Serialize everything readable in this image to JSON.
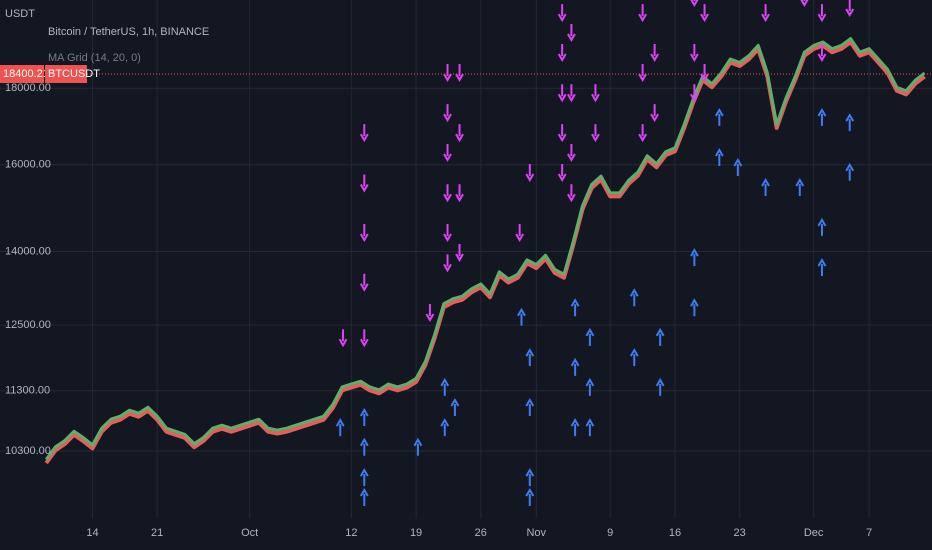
{
  "chart_data": {
    "type": "line",
    "title": "Bitcoin / TetherUS, 1h, BINANCE",
    "indicator": "MA Grid (14, 20, 0)",
    "y_unit": "USDT",
    "symbol": "BTCUSDT",
    "last_price": 18400.21,
    "last_price_color": "#ef5350",
    "log_scale": true,
    "grid": true,
    "xlim": [
      -6,
      94.8
    ],
    "xticks": [
      {
        "value": 4,
        "label": "14"
      },
      {
        "value": 11,
        "label": "21"
      },
      {
        "value": 21,
        "label": "Oct"
      },
      {
        "value": 32,
        "label": "12"
      },
      {
        "value": 39,
        "label": "19"
      },
      {
        "value": 46,
        "label": "26"
      },
      {
        "value": 52,
        "label": "Nov"
      },
      {
        "value": 60,
        "label": "9"
      },
      {
        "value": 67,
        "label": "16"
      },
      {
        "value": 74,
        "label": "23"
      },
      {
        "value": 82,
        "label": "Dec"
      },
      {
        "value": 88,
        "label": "7"
      }
    ],
    "ylim": [
      9290,
      20620
    ],
    "yticks": [
      {
        "value": 10300,
        "label": "10300.00"
      },
      {
        "value": 11300,
        "label": "11300.00"
      },
      {
        "value": 12500,
        "label": "12500.00"
      },
      {
        "value": 14000,
        "label": "14000.00"
      },
      {
        "value": 16000,
        "label": "16000.00"
      },
      {
        "value": 18000,
        "label": "18000.00"
      }
    ],
    "series": [
      {
        "color": "#5fae6a",
        "band_color": "#e0605a",
        "x": [
          -1,
          0,
          1,
          2,
          3,
          4,
          5,
          6,
          7,
          8,
          9,
          10,
          11,
          12,
          13,
          14,
          15,
          16,
          17,
          18,
          19,
          20,
          21,
          22,
          23,
          24,
          25,
          26,
          27,
          28,
          29,
          30,
          31,
          32,
          33,
          34,
          35,
          36,
          37,
          38,
          39,
          40,
          41,
          42,
          43,
          44,
          45,
          46,
          47,
          48,
          49,
          50,
          51,
          52,
          53,
          54,
          55,
          56,
          57,
          58,
          59,
          60,
          61,
          62,
          63,
          64,
          65,
          66,
          67,
          68,
          69,
          70,
          71,
          72,
          73,
          74,
          75,
          76,
          77,
          78,
          79,
          80,
          81,
          82,
          83,
          84,
          85,
          86,
          87,
          88,
          89,
          90,
          91,
          92,
          93,
          94
        ],
        "values": [
          10150,
          10350,
          10450,
          10600,
          10500,
          10380,
          10650,
          10800,
          10850,
          10950,
          10900,
          11000,
          10850,
          10650,
          10600,
          10550,
          10400,
          10500,
          10650,
          10700,
          10650,
          10700,
          10750,
          10800,
          10650,
          10620,
          10650,
          10700,
          10750,
          10800,
          10850,
          11050,
          11350,
          11400,
          11450,
          11350,
          11300,
          11400,
          11350,
          11400,
          11500,
          11800,
          12300,
          12900,
          13000,
          13050,
          13200,
          13300,
          13100,
          13550,
          13400,
          13500,
          13800,
          13700,
          13900,
          13600,
          13500,
          14200,
          15000,
          15500,
          15700,
          15300,
          15300,
          15600,
          15800,
          16200,
          16000,
          16300,
          16400,
          17000,
          17700,
          18300,
          18100,
          18400,
          18800,
          18700,
          18900,
          19200,
          18400,
          17000,
          17700,
          18300,
          19000,
          19200,
          19300,
          19100,
          19200,
          19400,
          19000,
          19100,
          18800,
          18500,
          18000,
          17900,
          18200,
          18400
        ]
      }
    ],
    "signals": [
      {
        "color": "#e040fb",
        "direction": "down",
        "x": [
          31.1,
          33.4,
          33.4,
          33.4,
          33.4,
          33.4,
          40.5,
          42.4,
          42.4,
          42.4,
          42.4,
          42.4,
          42.4,
          43.7,
          43.7,
          43.7,
          43.7,
          50.2,
          51.3,
          54.8,
          54.8,
          54.8,
          54.8,
          54.8,
          55.8,
          55.8,
          55.8,
          55.8,
          58.4,
          58.4,
          63.5,
          63.5,
          63.5,
          64.8,
          64.8,
          69.1,
          69.1,
          69.1,
          70.2,
          70.2,
          76.8,
          81.0,
          82.9,
          82.9,
          85.9
        ],
        "values": [
          12120,
          16620,
          15380,
          14250,
          13200,
          12120,
          12600,
          18230,
          17140,
          16120,
          15150,
          14250,
          13600,
          18230,
          16620,
          15150,
          13820,
          14250,
          15630,
          19990,
          18800,
          17670,
          16620,
          15630,
          19390,
          17670,
          16120,
          15150,
          17670,
          16620,
          19990,
          18230,
          16620,
          18800,
          17140,
          20460,
          18800,
          17670,
          19990,
          18230,
          19990,
          20460,
          19990,
          18800,
          20150
        ]
      },
      {
        "color": "#3d7cf5",
        "direction": "up",
        "x": [
          30.8,
          33.4,
          33.4,
          33.4,
          33.4,
          39.2,
          42.1,
          42.1,
          43.2,
          50.4,
          51.3,
          51.3,
          51.3,
          51.3,
          56.2,
          56.2,
          56.2,
          57.8,
          57.8,
          57.8,
          62.6,
          62.6,
          65.4,
          65.4,
          69.1,
          69.1,
          71.8,
          71.8,
          73.8,
          76.8,
          80.5,
          82.9,
          82.9,
          82.9,
          85.9,
          85.9
        ],
        "values": [
          10800,
          10970,
          10480,
          10000,
          9700,
          10480,
          11490,
          10800,
          11140,
          12800,
          12030,
          11140,
          10000,
          9700,
          12990,
          11850,
          10800,
          12410,
          11490,
          10800,
          13190,
          12030,
          12410,
          11490,
          14030,
          12990,
          17410,
          16370,
          16120,
          15630,
          15630,
          17410,
          14700,
          13820,
          17270,
          16000
        ]
      }
    ]
  }
}
